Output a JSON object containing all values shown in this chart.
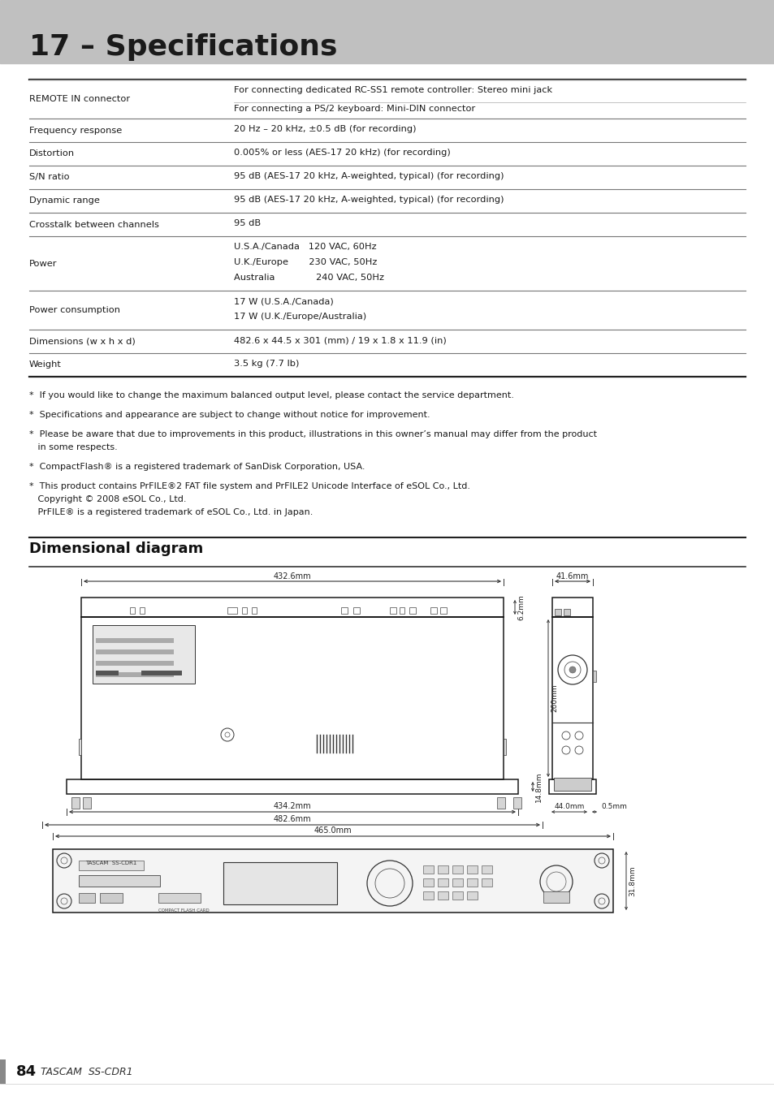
{
  "title": "17 – Specifications",
  "page_bg": "#ffffff",
  "table_rows": [
    {
      "label": "REMOTE IN connector",
      "value": "For connecting dedicated RC-SS1 remote controller: Stereo mini jack",
      "sub": "For connecting a PS/2 keyboard: Mini-DIN connector"
    },
    {
      "label": "Frequency response",
      "value": "20 Hz – 20 kHz, ±0.5 dB (for recording)",
      "sub": ""
    },
    {
      "label": "Distortion",
      "value": "0.005% or less (AES-17 20 kHz) (for recording)",
      "sub": ""
    },
    {
      "label": "S/N ratio",
      "value": "95 dB (AES-17 20 kHz, A-weighted, typical) (for recording)",
      "sub": ""
    },
    {
      "label": "Dynamic range",
      "value": "95 dB (AES-17 20 kHz, A-weighted, typical) (for recording)",
      "sub": ""
    },
    {
      "label": "Crosstalk between channels",
      "value": "95 dB",
      "sub": ""
    },
    {
      "label": "Power",
      "value": "U.S.A./Canada   120 VAC, 60Hz\nU.K./Europe       230 VAC, 50Hz\nAustralia              240 VAC, 50Hz",
      "sub": ""
    },
    {
      "label": "Power consumption",
      "value": "17 W (U.S.A./Canada)\n17 W (U.K./Europe/Australia)",
      "sub": ""
    },
    {
      "label": "Dimensions (w x h x d)",
      "value": "482.6 x 44.5 x 301 (mm) / 19 x 1.8 x 11.9 (in)",
      "sub": ""
    },
    {
      "label": "Weight",
      "value": "3.5 kg (7.7 lb)",
      "sub": ""
    }
  ],
  "notes": [
    "*  If you would like to change the maximum balanced output level, please contact the service department.",
    "*  Specifications and appearance are subject to change without notice for improvement.",
    "*  Please be aware that due to improvements in this product, illustrations in this owner’s manual may differ from the product\n   in some respects.",
    "*  CompactFlash® is a registered trademark of SanDisk Corporation, USA.",
    "*  This product contains PrFILE®2 FAT file system and PrFILE2 Unicode Interface of eSOL Co., Ltd.\n   Copyright © 2008 eSOL Co., Ltd.\n   PrFILE® is a registered trademark of eSOL Co., Ltd. in Japan."
  ],
  "dim_title": "Dimensional diagram",
  "page_label": "84",
  "page_brand": "TASCAM  SS-CDR1"
}
